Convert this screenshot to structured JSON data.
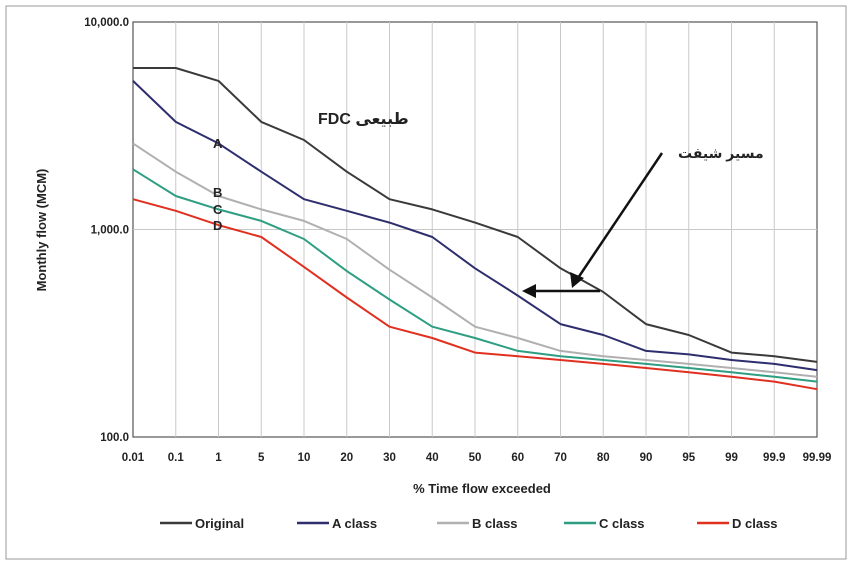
{
  "chart_data": {
    "type": "line",
    "xlabel": "% Time flow exceeded",
    "ylabel": "Monthly flow (MCM)",
    "x": [
      "0.01",
      "0.1",
      "1",
      "5",
      "10",
      "20",
      "30",
      "40",
      "50",
      "60",
      "70",
      "80",
      "90",
      "95",
      "99",
      "99.9",
      "99.99"
    ],
    "y_scale": "log",
    "ylim": [
      100,
      10000
    ],
    "y_ticks": [
      "100.0",
      "1,000.0",
      "10,000.0"
    ],
    "grid": "vertical and horizontal",
    "legend_position": "bottom",
    "series": [
      {
        "name": "Original",
        "color": "#3a3a3a",
        "values": [
          6000,
          6000,
          5200,
          3300,
          2700,
          1900,
          1400,
          1250,
          1080,
          920,
          650,
          500,
          350,
          310,
          255,
          245,
          230
        ]
      },
      {
        "name": "A class",
        "color": "#2e2e6e",
        "values": [
          5200,
          3300,
          2600,
          1900,
          1400,
          1230,
          1080,
          920,
          650,
          480,
          350,
          310,
          260,
          250,
          235,
          225,
          210
        ]
      },
      {
        "name": "B class",
        "color": "#b0b0b0",
        "values": [
          2600,
          1900,
          1450,
          1250,
          1100,
          900,
          640,
          470,
          340,
          300,
          260,
          245,
          235,
          225,
          215,
          205,
          195
        ]
      },
      {
        "name": "C class",
        "color": "#2e9e82",
        "values": [
          1950,
          1450,
          1250,
          1100,
          900,
          630,
          460,
          340,
          300,
          260,
          245,
          235,
          225,
          215,
          205,
          195,
          185
        ]
      },
      {
        "name": "D class",
        "color": "#e03020",
        "values": [
          1400,
          1230,
          1050,
          920,
          660,
          470,
          340,
          300,
          255,
          245,
          235,
          225,
          215,
          205,
          195,
          185,
          170
        ]
      }
    ],
    "annotations": {
      "fdc_label": "FDC طبیعی",
      "shift_label": "مسیر شیفت",
      "curve_labels": [
        "A",
        "B",
        "C",
        "D"
      ]
    }
  }
}
